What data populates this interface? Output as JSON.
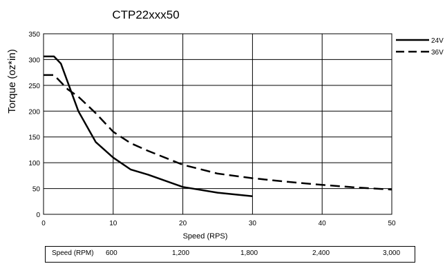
{
  "chart_data": {
    "type": "line",
    "title": "CTP22xxx50",
    "xlabel": "Speed (RPS)",
    "ylabel": "Torque (oz*in)",
    "xlim": [
      0,
      50
    ],
    "ylim": [
      0,
      350
    ],
    "x_ticks": [
      0,
      10,
      20,
      30,
      40,
      50
    ],
    "y_ticks": [
      0,
      50,
      100,
      150,
      200,
      250,
      300,
      350
    ],
    "grid": true,
    "legend_position": "top-right",
    "series": [
      {
        "name": "24V",
        "style": "solid",
        "color": "#000000",
        "points": [
          [
            0,
            306
          ],
          [
            1.5,
            306
          ],
          [
            2.5,
            292
          ],
          [
            5,
            200
          ],
          [
            7.5,
            140
          ],
          [
            10,
            110
          ],
          [
            12.5,
            87
          ],
          [
            15,
            77
          ],
          [
            20,
            53
          ],
          [
            25,
            42
          ],
          [
            30,
            35
          ]
        ]
      },
      {
        "name": "36V",
        "style": "dashed",
        "color": "#000000",
        "points": [
          [
            0,
            270
          ],
          [
            1.5,
            270
          ],
          [
            3.5,
            242
          ],
          [
            5,
            228
          ],
          [
            7.5,
            196
          ],
          [
            10,
            160
          ],
          [
            12.5,
            138
          ],
          [
            15,
            123
          ],
          [
            20,
            96
          ],
          [
            25,
            79
          ],
          [
            30,
            70
          ],
          [
            35,
            63
          ],
          [
            40,
            57
          ],
          [
            45,
            52
          ],
          [
            50,
            48
          ]
        ]
      }
    ]
  },
  "rpm_table": {
    "label": "Speed (RPM)",
    "values": [
      "600",
      "1,200",
      "1,800",
      "2,400",
      "3,000"
    ]
  }
}
